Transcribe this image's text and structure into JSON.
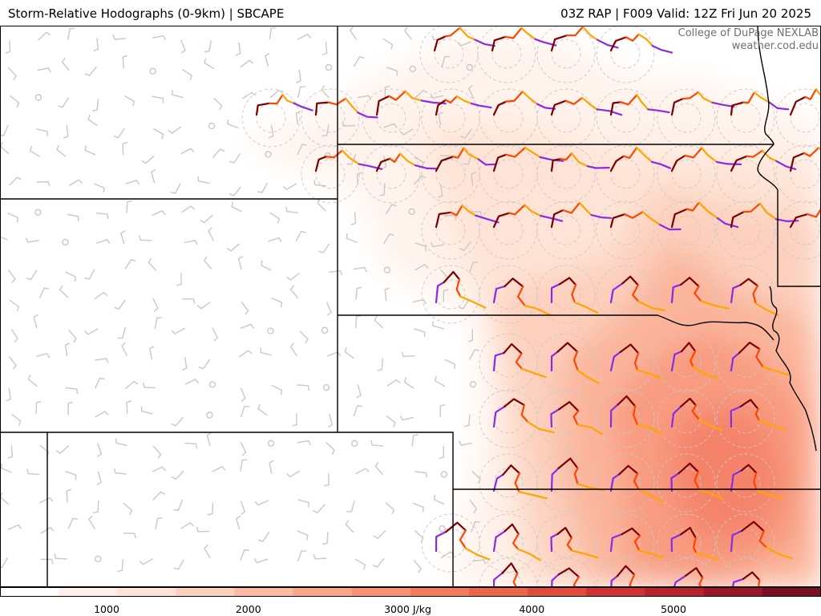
{
  "header": {
    "title_left": "Storm-Relative Hodographs (0-9km) | SBCAPE",
    "title_right": "03Z RAP | F009 Valid: 12Z Fri Jun 20 2025"
  },
  "credit": {
    "line1": "College of DuPage NEXLAB",
    "line2": "weather.cod.edu"
  },
  "colorbar": {
    "min": 0,
    "max": 6000,
    "ticks": [
      {
        "value": 1000,
        "label": "1000"
      },
      {
        "value": 2000,
        "label": "2000"
      },
      {
        "value": 3000,
        "label": "3000 J/kg"
      },
      {
        "value": 4000,
        "label": "4000"
      },
      {
        "value": 5000,
        "label": "5000"
      }
    ],
    "colors": [
      "#ffffff",
      "#fff1ea",
      "#fee3d6",
      "#fdd0bc",
      "#fcbba1",
      "#fca689",
      "#fb9070",
      "#f67a5c",
      "#ef6548",
      "#e24a3b",
      "#cf3232",
      "#b8222b",
      "#9c1626",
      "#7a0f22"
    ]
  },
  "hodograph_colors": {
    "0-1km": "#7a0000",
    "1-3km": "#ff4500",
    "3-6km": "#ffa500",
    "6-9km": "#8a2be2"
  }
}
